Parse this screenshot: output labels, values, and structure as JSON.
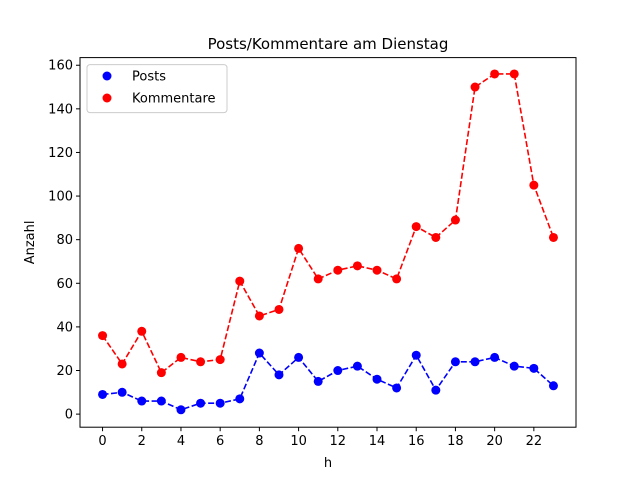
{
  "chart_data": {
    "type": "line",
    "title": "Posts/Kommentare am Dienstag",
    "xlabel": "h",
    "ylabel": "Anzahl",
    "x": [
      0,
      1,
      2,
      3,
      4,
      5,
      6,
      7,
      8,
      9,
      10,
      11,
      12,
      13,
      14,
      15,
      16,
      17,
      18,
      19,
      20,
      21,
      22,
      23
    ],
    "xlim": [
      -1.15,
      24.15
    ],
    "ylim": [
      -6,
      163.5
    ],
    "xticks": [
      0,
      2,
      4,
      6,
      8,
      10,
      12,
      14,
      16,
      18,
      20,
      22
    ],
    "yticks": [
      0,
      20,
      40,
      60,
      80,
      100,
      120,
      140,
      160
    ],
    "grid": false,
    "legend_position": "top-left",
    "series": [
      {
        "name": "Posts",
        "color": "#0000ff",
        "linestyle": "dashed",
        "marker": "circle",
        "values": [
          9,
          10,
          6,
          6,
          2,
          5,
          5,
          7,
          28,
          18,
          26,
          15,
          20,
          22,
          16,
          12,
          27,
          11,
          24,
          24,
          26,
          22,
          21,
          13
        ]
      },
      {
        "name": "Kommentare",
        "color": "#ff0000",
        "linestyle": "dashed",
        "marker": "circle",
        "values": [
          36,
          23,
          38,
          19,
          26,
          24,
          25,
          61,
          45,
          48,
          76,
          62,
          66,
          68,
          66,
          62,
          86,
          81,
          89,
          150,
          156,
          156,
          105,
          81
        ]
      }
    ]
  }
}
